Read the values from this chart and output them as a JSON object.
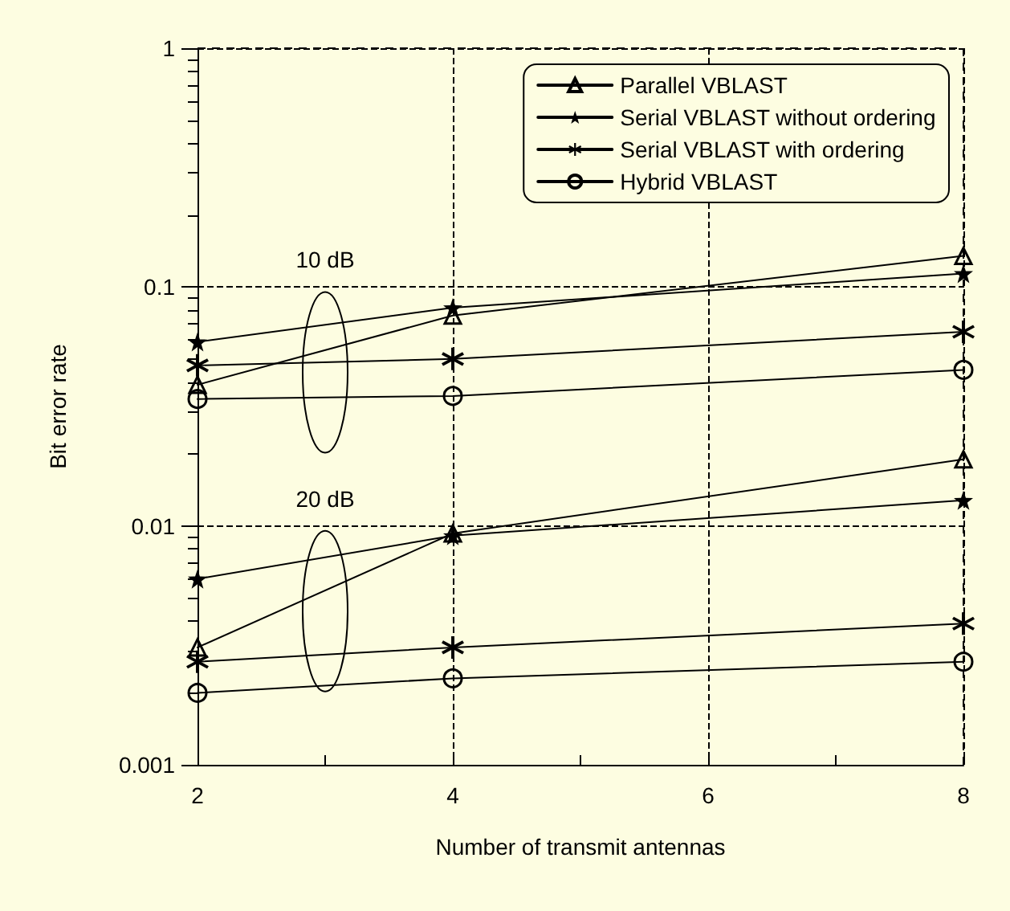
{
  "chart_data": {
    "type": "line",
    "xlabel": "Number of transmit antennas",
    "ylabel": "Bit error rate",
    "log": "y",
    "grid": true,
    "legend": "top right",
    "line_style": "solid",
    "xlim": [
      2,
      8
    ],
    "xticks": [
      2,
      4,
      6,
      8
    ],
    "ylim": [
      0.001,
      1
    ],
    "yticks": [
      0.001,
      0.01,
      0.1,
      1
    ],
    "annotations": [
      {
        "text": "10 dB",
        "x": 3,
        "y": 0.13
      },
      {
        "text": "20 dB",
        "x": 3,
        "y": 0.013
      }
    ],
    "series": [
      {
        "name": "Parallel VBLAST",
        "color": "#000000",
        "marker": "triangle",
        "x": [
          2,
          4,
          8
        ],
        "values": [
          0.039,
          0.076,
          0.135
        ]
      },
      {
        "name": "Serial VBLAST without ordering",
        "color": "#000000",
        "marker": "star",
        "x": [
          2,
          4,
          8
        ],
        "values": [
          0.059,
          0.082,
          0.114
        ]
      },
      {
        "name": "Serial VBLAST with ordering",
        "color": "#000000",
        "marker": "cross",
        "x": [
          2,
          4,
          8
        ],
        "values": [
          0.047,
          0.05,
          0.065
        ]
      },
      {
        "name": "Hybrid VBLAST",
        "color": "#000000",
        "marker": "circle",
        "x": [
          2,
          4,
          8
        ],
        "values": [
          0.034,
          0.035,
          0.045
        ]
      },
      {
        "color": "#000000",
        "marker": "triangle",
        "x": [
          2,
          4,
          8
        ],
        "values": [
          0.0031,
          0.0093,
          0.019
        ]
      },
      {
        "color": "#000000",
        "marker": "star",
        "x": [
          2,
          4,
          8
        ],
        "values": [
          0.006,
          0.0091,
          0.0128
        ]
      },
      {
        "color": "#000000",
        "marker": "cross",
        "x": [
          2,
          4,
          8
        ],
        "values": [
          0.0027,
          0.0031,
          0.0039
        ]
      },
      {
        "color": "#000000",
        "marker": "circle",
        "x": [
          2,
          4,
          8
        ],
        "values": [
          0.002,
          0.0023,
          0.0027
        ]
      }
    ]
  }
}
